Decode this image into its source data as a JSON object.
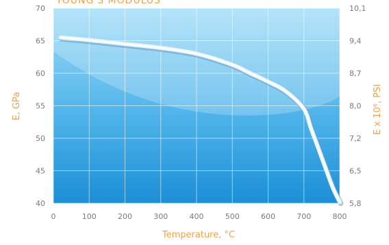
{
  "chart_data": {
    "type": "line",
    "title": "YOUNG'S MODULUS",
    "xlabel": "Temperature, °C",
    "ylabel_left": "E, GPa",
    "ylabel_right": "E x 10⁶, PSI",
    "xlim": [
      0,
      800
    ],
    "ylim": [
      40,
      70
    ],
    "x_ticks": [
      "0",
      "100",
      "200",
      "300",
      "400",
      "500",
      "600",
      "700",
      "800"
    ],
    "y_ticks_left": [
      "40",
      "45",
      "50",
      "55",
      "60",
      "65",
      "70"
    ],
    "y_ticks_right": [
      "5,8",
      "6,5",
      "7,2",
      "8,0",
      "8,7",
      "9,4",
      "10,1"
    ],
    "grid": true,
    "series": [
      {
        "x": [
          20,
          100,
          200,
          300,
          400,
          500,
          550,
          600,
          650,
          700,
          720,
          740,
          760,
          780,
          800
        ],
        "y": [
          65.5,
          65.1,
          64.5,
          63.9,
          63.0,
          61.3,
          60.0,
          58.7,
          57.2,
          54.5,
          51.5,
          48.5,
          45.5,
          42.5,
          40.2
        ]
      }
    ],
    "colors": {
      "plot_bg_top": "#9fdcf7",
      "plot_bg_bottom": "#1c8fd6",
      "line": "#e8f4fb",
      "accent_text": "#f0a046"
    }
  }
}
